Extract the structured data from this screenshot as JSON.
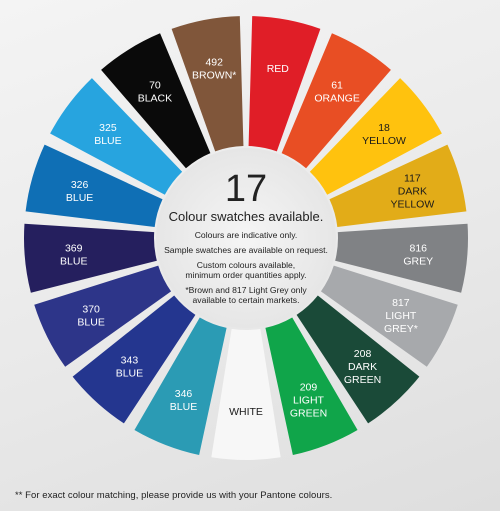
{
  "wheel": {
    "segments": [
      {
        "lines": [
          "RED"
        ],
        "color": "#e01e27",
        "text_color": "#ffffff"
      },
      {
        "lines": [
          "61",
          "ORANGE"
        ],
        "color": "#e84e24",
        "text_color": "#ffffff"
      },
      {
        "lines": [
          "18",
          "YELLOW"
        ],
        "color": "#ffc20e",
        "text_color": "#1a1a1a"
      },
      {
        "lines": [
          "117",
          "DARK",
          "YELLOW"
        ],
        "color": "#e2ac18",
        "text_color": "#1a1a1a"
      },
      {
        "lines": [
          "816",
          "GREY"
        ],
        "color": "#808285",
        "text_color": "#ffffff"
      },
      {
        "lines": [
          "817",
          "LIGHT",
          "GREY*"
        ],
        "color": "#a7a9ac",
        "text_color": "#ffffff"
      },
      {
        "lines": [
          "208",
          "DARK",
          "GREEN"
        ],
        "color": "#1a4a38",
        "text_color": "#ffffff"
      },
      {
        "lines": [
          "209",
          "LIGHT",
          "GREEN"
        ],
        "color": "#10a54a",
        "text_color": "#ffffff"
      },
      {
        "lines": [
          "WHITE"
        ],
        "color": "#f7f7f7",
        "text_color": "#1a1a1a"
      },
      {
        "lines": [
          "346",
          "BLUE"
        ],
        "color": "#2b9bb4",
        "text_color": "#ffffff"
      },
      {
        "lines": [
          "343",
          "BLUE"
        ],
        "color": "#24368f",
        "text_color": "#ffffff"
      },
      {
        "lines": [
          "370",
          "BLUE"
        ],
        "color": "#2d3589",
        "text_color": "#ffffff"
      },
      {
        "lines": [
          "369",
          "BLUE"
        ],
        "color": "#251f5e",
        "text_color": "#ffffff"
      },
      {
        "lines": [
          "326",
          "BLUE"
        ],
        "color": "#0f6fb5",
        "text_color": "#ffffff"
      },
      {
        "lines": [
          "325",
          "BLUE"
        ],
        "color": "#27a4df",
        "text_color": "#ffffff"
      },
      {
        "lines": [
          "70",
          "BLACK"
        ],
        "color": "#0a0a0a",
        "text_color": "#ffffff"
      },
      {
        "lines": [
          "492",
          "BROWN*"
        ],
        "color": "#80563a",
        "text_color": "#ffffff"
      }
    ]
  },
  "center": {
    "number": "17",
    "headline": "Colour swatches available.",
    "notes": [
      [
        "Colours are indicative only."
      ],
      [
        "Sample swatches are available on request."
      ],
      [
        "Custom colours available,",
        "minimum order quantities apply."
      ],
      [
        "*Brown and 817 Light Grey only",
        "available to certain markets."
      ]
    ]
  },
  "footnote": "** For exact colour matching, please provide us with your Pantone colours."
}
